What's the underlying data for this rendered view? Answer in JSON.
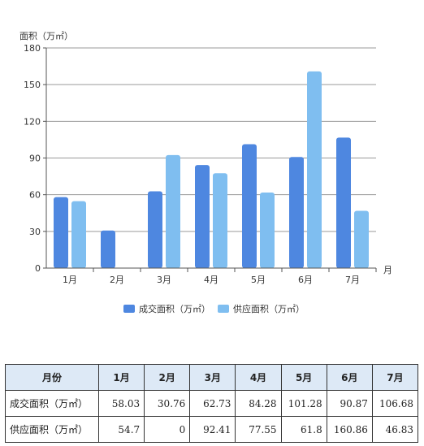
{
  "chart_data": {
    "type": "bar",
    "ylabel": "面积（万㎡）",
    "xlabel": "月",
    "categories": [
      "1月",
      "2月",
      "3月",
      "4月",
      "5月",
      "6月",
      "7月"
    ],
    "ylim": [
      0,
      180
    ],
    "yticks": [
      0,
      30,
      60,
      90,
      120,
      150,
      180
    ],
    "grid": true,
    "legend_position": "bottom",
    "series": [
      {
        "name": "成交面积（万㎡）",
        "color": "#4e87e0",
        "values": [
          58.03,
          30.76,
          62.73,
          84.28,
          101.28,
          90.87,
          106.68
        ]
      },
      {
        "name": "供应面积（万㎡）",
        "color": "#7fbef0",
        "values": [
          54.7,
          0,
          92.41,
          77.55,
          61.8,
          160.86,
          46.83
        ]
      }
    ]
  },
  "table": {
    "header": [
      "月份",
      "1月",
      "2月",
      "3月",
      "4月",
      "5月",
      "6月",
      "7月"
    ],
    "rows": [
      {
        "label": "成交面积（万㎡）",
        "values": [
          "58.03",
          "30.76",
          "62.73",
          "84.28",
          "101.28",
          "90.87",
          "106.68"
        ]
      },
      {
        "label": "供应面积（万㎡）",
        "values": [
          "54.7",
          "0",
          "92.41",
          "77.55",
          "61.8",
          "160.86",
          "46.83"
        ]
      }
    ]
  }
}
